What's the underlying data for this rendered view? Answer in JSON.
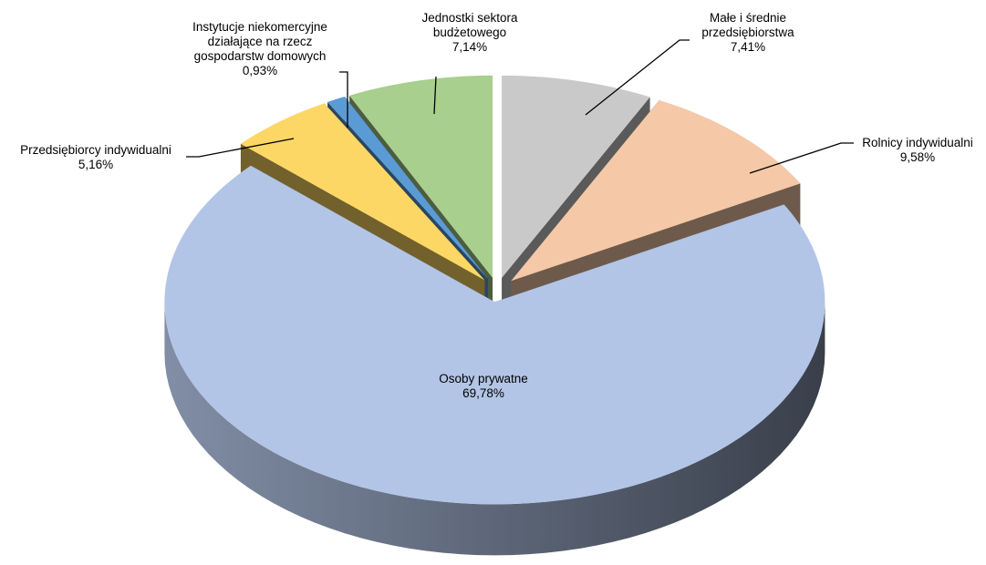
{
  "chart_data": {
    "type": "pie3d",
    "categories": [
      "Małe i średnie przedsiębiorstwa",
      "Rolnicy indywidualni",
      "Osoby prywatne",
      "Przedsiębiorcy indywidualni",
      "Instytucje niekomercyjne działające na rzecz gospodarstw domowych",
      "Jednostki sektora budżetowego"
    ],
    "values": [
      7.41,
      9.58,
      69.78,
      5.16,
      0.93,
      7.14
    ],
    "value_labels": [
      "7,41%",
      "9,58%",
      "69,78%",
      "5,16%",
      "0,93%",
      "7,14%"
    ],
    "colors": [
      "#c9c9c9",
      "#f5c8a7",
      "#b3c5e6",
      "#fdd765",
      "#5b9bd5",
      "#a8cf8d"
    ]
  }
}
